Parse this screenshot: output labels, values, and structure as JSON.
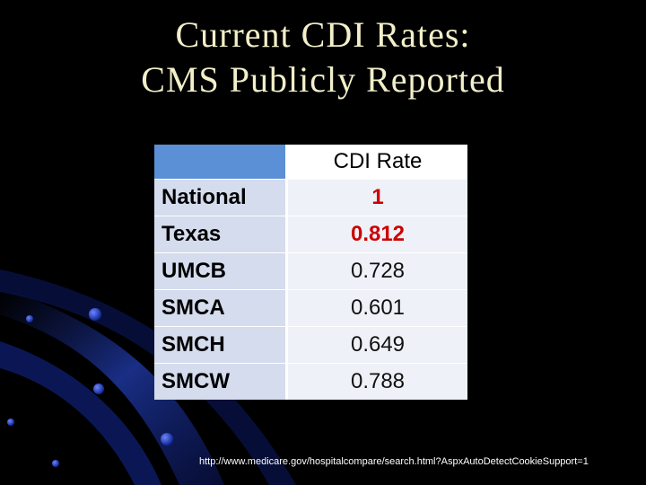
{
  "slide": {
    "title_line1": "Current CDI Rates:",
    "title_line2": "CMS Publicly Reported"
  },
  "table": {
    "header": [
      "",
      "CDI Rate"
    ],
    "rows": [
      {
        "name": "National",
        "value": "1",
        "highlight": true
      },
      {
        "name": "Texas",
        "value": "0.812",
        "highlight": true
      },
      {
        "name": "UMCB",
        "value": "0.728",
        "highlight": false
      },
      {
        "name": "SMCA",
        "value": "0.601",
        "highlight": false
      },
      {
        "name": "SMCH",
        "value": "0.649",
        "highlight": false
      },
      {
        "name": "SMCW",
        "value": "0.788",
        "highlight": false
      }
    ]
  },
  "source_url": "http://www.medicare.gov/hospitalcompare/search.html?AspxAutoDetectCookieSupport=1",
  "colors": {
    "background": "#000000",
    "title": "#f2efc9",
    "highlight_text": "#cc0000",
    "header_fill": "#4f81bd",
    "swoosh": "#1f3fa8"
  }
}
